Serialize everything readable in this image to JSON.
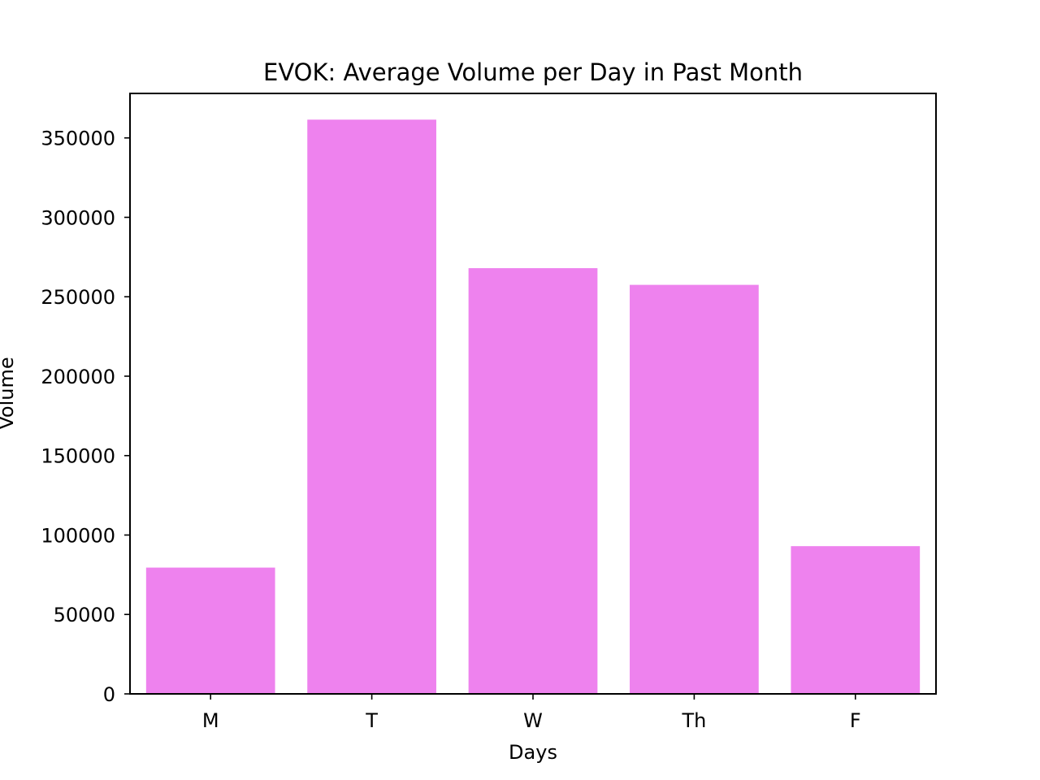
{
  "chart_data": {
    "type": "bar",
    "title": "EVOK: Average Volume per Day in Past Month",
    "xlabel": "Days",
    "ylabel": "Volume",
    "categories": [
      "M",
      "T",
      "W",
      "Th",
      "F"
    ],
    "values": [
      79500,
      361500,
      268000,
      257500,
      93000
    ],
    "ylim": [
      0,
      378000
    ],
    "yticks": [
      0,
      50000,
      100000,
      150000,
      200000,
      250000,
      300000,
      350000
    ],
    "ytick_labels": [
      "0",
      "50000",
      "100000",
      "150000",
      "200000",
      "250000",
      "300000",
      "350000"
    ],
    "grid": false,
    "legend": "none",
    "bar_color": "#ee82ee"
  }
}
